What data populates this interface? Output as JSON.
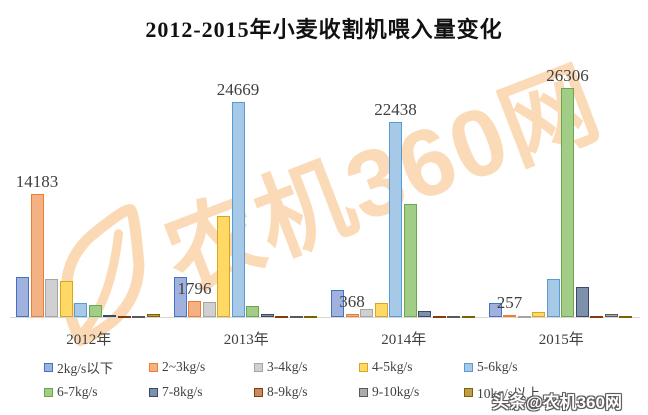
{
  "title": "2012-2015年小麦收割机喂入量变化",
  "watermark": {
    "text": "农机360网"
  },
  "badge": {
    "text": "头条@农机360网"
  },
  "chart_data": {
    "type": "bar",
    "title": "2012-2015年小麦收割机喂入量变化",
    "categories": [
      "2012年",
      "2013年",
      "2014年",
      "2015年"
    ],
    "series": [
      {
        "name": "2kg/s以下",
        "fill": "#9FB1DC",
        "border": "#4472C4",
        "values": [
          4600,
          4600,
          3100,
          1650
        ]
      },
      {
        "name": "2~3kg/s",
        "fill": "#F4B183",
        "border": "#ED7D31",
        "values": [
          14183,
          1796,
          368,
          257
        ]
      },
      {
        "name": "3-4kg/s",
        "fill": "#D0D0D0",
        "border": "#A5A5A5",
        "values": [
          4400,
          1700,
          900,
          120
        ]
      },
      {
        "name": "4-5kg/s",
        "fill": "#FFD966",
        "border": "#DAA520",
        "values": [
          4150,
          11600,
          1650,
          570
        ]
      },
      {
        "name": "5-6kg/s",
        "fill": "#A6C9E8",
        "border": "#5B9BD5",
        "values": [
          1600,
          24669,
          22438,
          4350
        ]
      },
      {
        "name": "6-7kg/s",
        "fill": "#A2CD86",
        "border": "#6AA84F",
        "values": [
          1430,
          1270,
          13000,
          26306
        ]
      },
      {
        "name": "7-8kg/s",
        "fill": "#7D90AC",
        "border": "#3A4A63",
        "values": [
          230,
          350,
          700,
          3450
        ]
      },
      {
        "name": "8-9kg/s",
        "fill": "#C98963",
        "border": "#843C0C",
        "values": [
          60,
          60,
          90,
          110
        ]
      },
      {
        "name": "9-10kg/s",
        "fill": "#ABABAB",
        "border": "#595959",
        "values": [
          40,
          60,
          90,
          400
        ]
      },
      {
        "name": "10kg/s以上",
        "fill": "#BD9E4C",
        "border": "#7F6000",
        "values": [
          350,
          140,
          110,
          110
        ]
      }
    ],
    "data_labels": [
      {
        "category": 0,
        "series": 1,
        "text": "14183"
      },
      {
        "category": 1,
        "series": 1,
        "text": "1796"
      },
      {
        "category": 1,
        "series": 4,
        "text": "24669"
      },
      {
        "category": 2,
        "series": 1,
        "text": "368"
      },
      {
        "category": 2,
        "series": 4,
        "text": "22438"
      },
      {
        "category": 3,
        "series": 1,
        "text": "257"
      },
      {
        "category": 3,
        "series": 5,
        "text": "26306"
      }
    ],
    "ylim": [
      0,
      28000
    ],
    "grid": false,
    "legend_position": "bottom",
    "xlabel": "",
    "ylabel": ""
  }
}
